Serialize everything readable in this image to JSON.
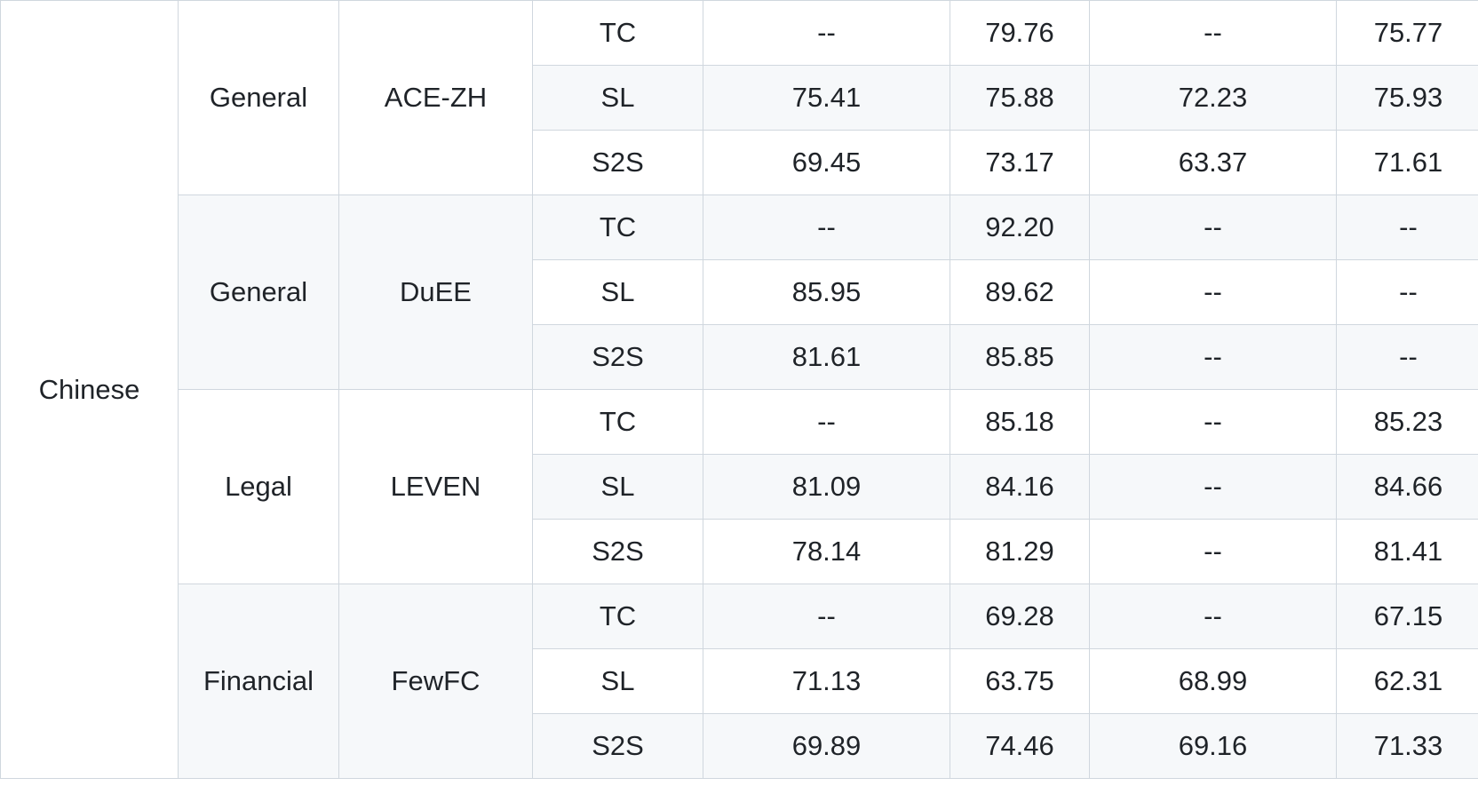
{
  "table": {
    "language": "Chinese",
    "groups": [
      {
        "domain": "General",
        "dataset": "ACE-ZH",
        "rows": [
          {
            "method": "TC",
            "values": [
              "--",
              "79.76",
              "--",
              "75.77"
            ]
          },
          {
            "method": "SL",
            "values": [
              "75.41",
              "75.88",
              "72.23",
              "75.93"
            ]
          },
          {
            "method": "S2S",
            "values": [
              "69.45",
              "73.17",
              "63.37",
              "71.61"
            ]
          }
        ]
      },
      {
        "domain": "General",
        "dataset": "DuEE",
        "rows": [
          {
            "method": "TC",
            "values": [
              "--",
              "92.20",
              "--",
              "--"
            ]
          },
          {
            "method": "SL",
            "values": [
              "85.95",
              "89.62",
              "--",
              "--"
            ]
          },
          {
            "method": "S2S",
            "values": [
              "81.61",
              "85.85",
              "--",
              "--"
            ]
          }
        ]
      },
      {
        "domain": "Legal",
        "dataset": "LEVEN",
        "rows": [
          {
            "method": "TC",
            "values": [
              "--",
              "85.18",
              "--",
              "85.23"
            ]
          },
          {
            "method": "SL",
            "values": [
              "81.09",
              "84.16",
              "--",
              "84.66"
            ]
          },
          {
            "method": "S2S",
            "values": [
              "78.14",
              "81.29",
              "--",
              "81.41"
            ]
          }
        ]
      },
      {
        "domain": "Financial",
        "dataset": "FewFC",
        "rows": [
          {
            "method": "TC",
            "values": [
              "--",
              "69.28",
              "--",
              "67.15"
            ]
          },
          {
            "method": "SL",
            "values": [
              "71.13",
              "63.75",
              "68.99",
              "62.31"
            ]
          },
          {
            "method": "S2S",
            "values": [
              "69.89",
              "74.46",
              "69.16",
              "71.33"
            ]
          }
        ]
      }
    ]
  }
}
